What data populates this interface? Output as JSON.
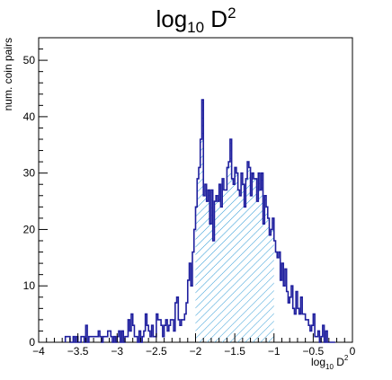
{
  "chart_data": {
    "type": "bar",
    "title": {
      "base": "log",
      "sub": "10",
      "rest": " D",
      "sup": "2"
    },
    "xlabel": {
      "base": "log",
      "sub": "10",
      "rest": " D",
      "sup": "2"
    },
    "ylabel": "num. coin pairs",
    "xlim": [
      -4,
      0
    ],
    "ylim": [
      0,
      54
    ],
    "x_tick_labels": [
      "−4",
      "−3.5",
      "−3",
      "−2.5",
      "−2",
      "−1.5",
      "−1",
      "−0.5",
      "0"
    ],
    "x_tick_values": [
      -4,
      -3.5,
      -3,
      -2.5,
      -2,
      -1.5,
      -1,
      -0.5,
      0
    ],
    "y_tick_labels": [
      "0",
      "10",
      "20",
      "30",
      "40",
      "50"
    ],
    "y_tick_values": [
      0,
      10,
      20,
      30,
      40,
      50
    ],
    "bin_width": 0.02,
    "x_start": -3.66,
    "values": [
      1,
      1,
      1,
      0,
      0,
      1,
      0,
      1,
      0,
      0,
      1,
      1,
      0,
      3,
      0,
      1,
      1,
      1,
      1,
      1,
      1,
      2,
      1,
      0,
      1,
      1,
      1,
      2,
      2,
      1,
      0,
      1,
      0,
      1,
      2,
      0,
      2,
      0,
      1,
      1,
      4,
      2,
      5,
      3,
      1,
      1,
      0,
      2,
      0,
      1,
      2,
      5,
      3,
      2,
      1,
      3,
      1,
      1,
      5,
      4,
      4,
      3,
      1,
      3,
      4,
      2,
      3,
      4,
      4,
      2,
      7,
      8,
      4,
      3,
      4,
      4,
      5,
      7,
      11,
      14,
      10,
      16,
      20,
      24,
      29,
      31,
      36,
      43,
      26,
      28,
      25,
      27,
      21,
      27,
      18,
      25,
      26,
      25,
      28,
      24,
      29,
      27,
      27,
      31,
      32,
      36,
      29,
      28,
      31,
      30,
      27,
      26,
      30,
      28,
      24,
      29,
      32,
      31,
      26,
      30,
      29,
      29,
      25,
      30,
      27,
      30,
      21,
      26,
      24,
      22,
      19,
      20,
      22,
      18,
      16,
      15,
      16,
      11,
      14,
      10,
      13,
      9,
      7,
      8,
      10,
      6,
      5,
      9,
      6,
      5,
      8,
      5,
      5,
      4,
      4,
      3,
      2,
      3,
      5,
      1,
      1,
      2,
      0,
      1,
      3,
      0,
      2,
      0,
      0,
      0,
      0,
      0
    ],
    "hatched_range": [
      -2,
      -1
    ],
    "colors": {
      "line": "#1f1f9e",
      "hatch": "#3aa0d8",
      "axis": "#000000"
    },
    "grid": false
  }
}
